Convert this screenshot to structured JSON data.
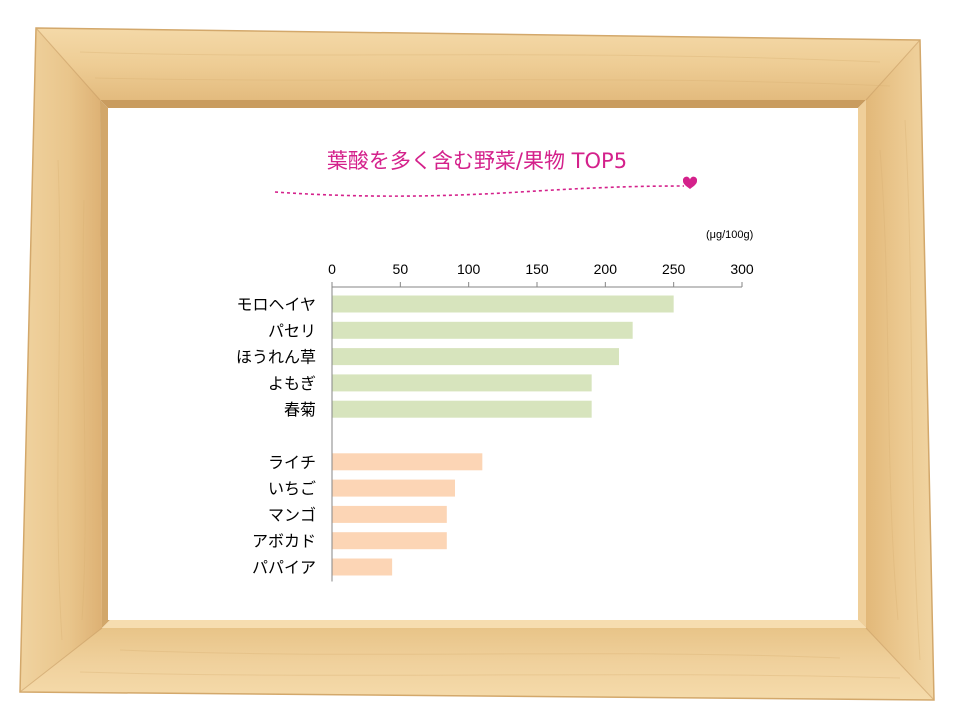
{
  "chart_data": {
    "type": "bar",
    "orientation": "horizontal",
    "title": "葉酸を多く含む野菜/果物 TOP5",
    "unit": "(μg/100g)",
    "xlim": [
      0,
      300
    ],
    "ticks": [
      0,
      50,
      100,
      150,
      200,
      250,
      300
    ],
    "axis_position": "top",
    "grid": false,
    "groups": [
      {
        "categories": [
          "モロヘイヤ",
          "パセリ",
          "ほうれん草",
          "よもぎ",
          "春菊"
        ],
        "values": [
          250,
          220,
          210,
          190,
          190
        ],
        "color": "#d7e4bd"
      },
      {
        "categories": [
          "ライチ",
          "いちご",
          "マンゴ",
          "アボカド",
          "パパイア"
        ],
        "values": [
          110,
          90,
          84,
          84,
          44
        ],
        "color": "#fcd5b5"
      }
    ]
  },
  "colors": {
    "title": "#d4218b",
    "axis": "#868686",
    "wood": "#ecc88e",
    "background": "#ffffff"
  },
  "icons": {
    "decoration": "heart-icon"
  }
}
